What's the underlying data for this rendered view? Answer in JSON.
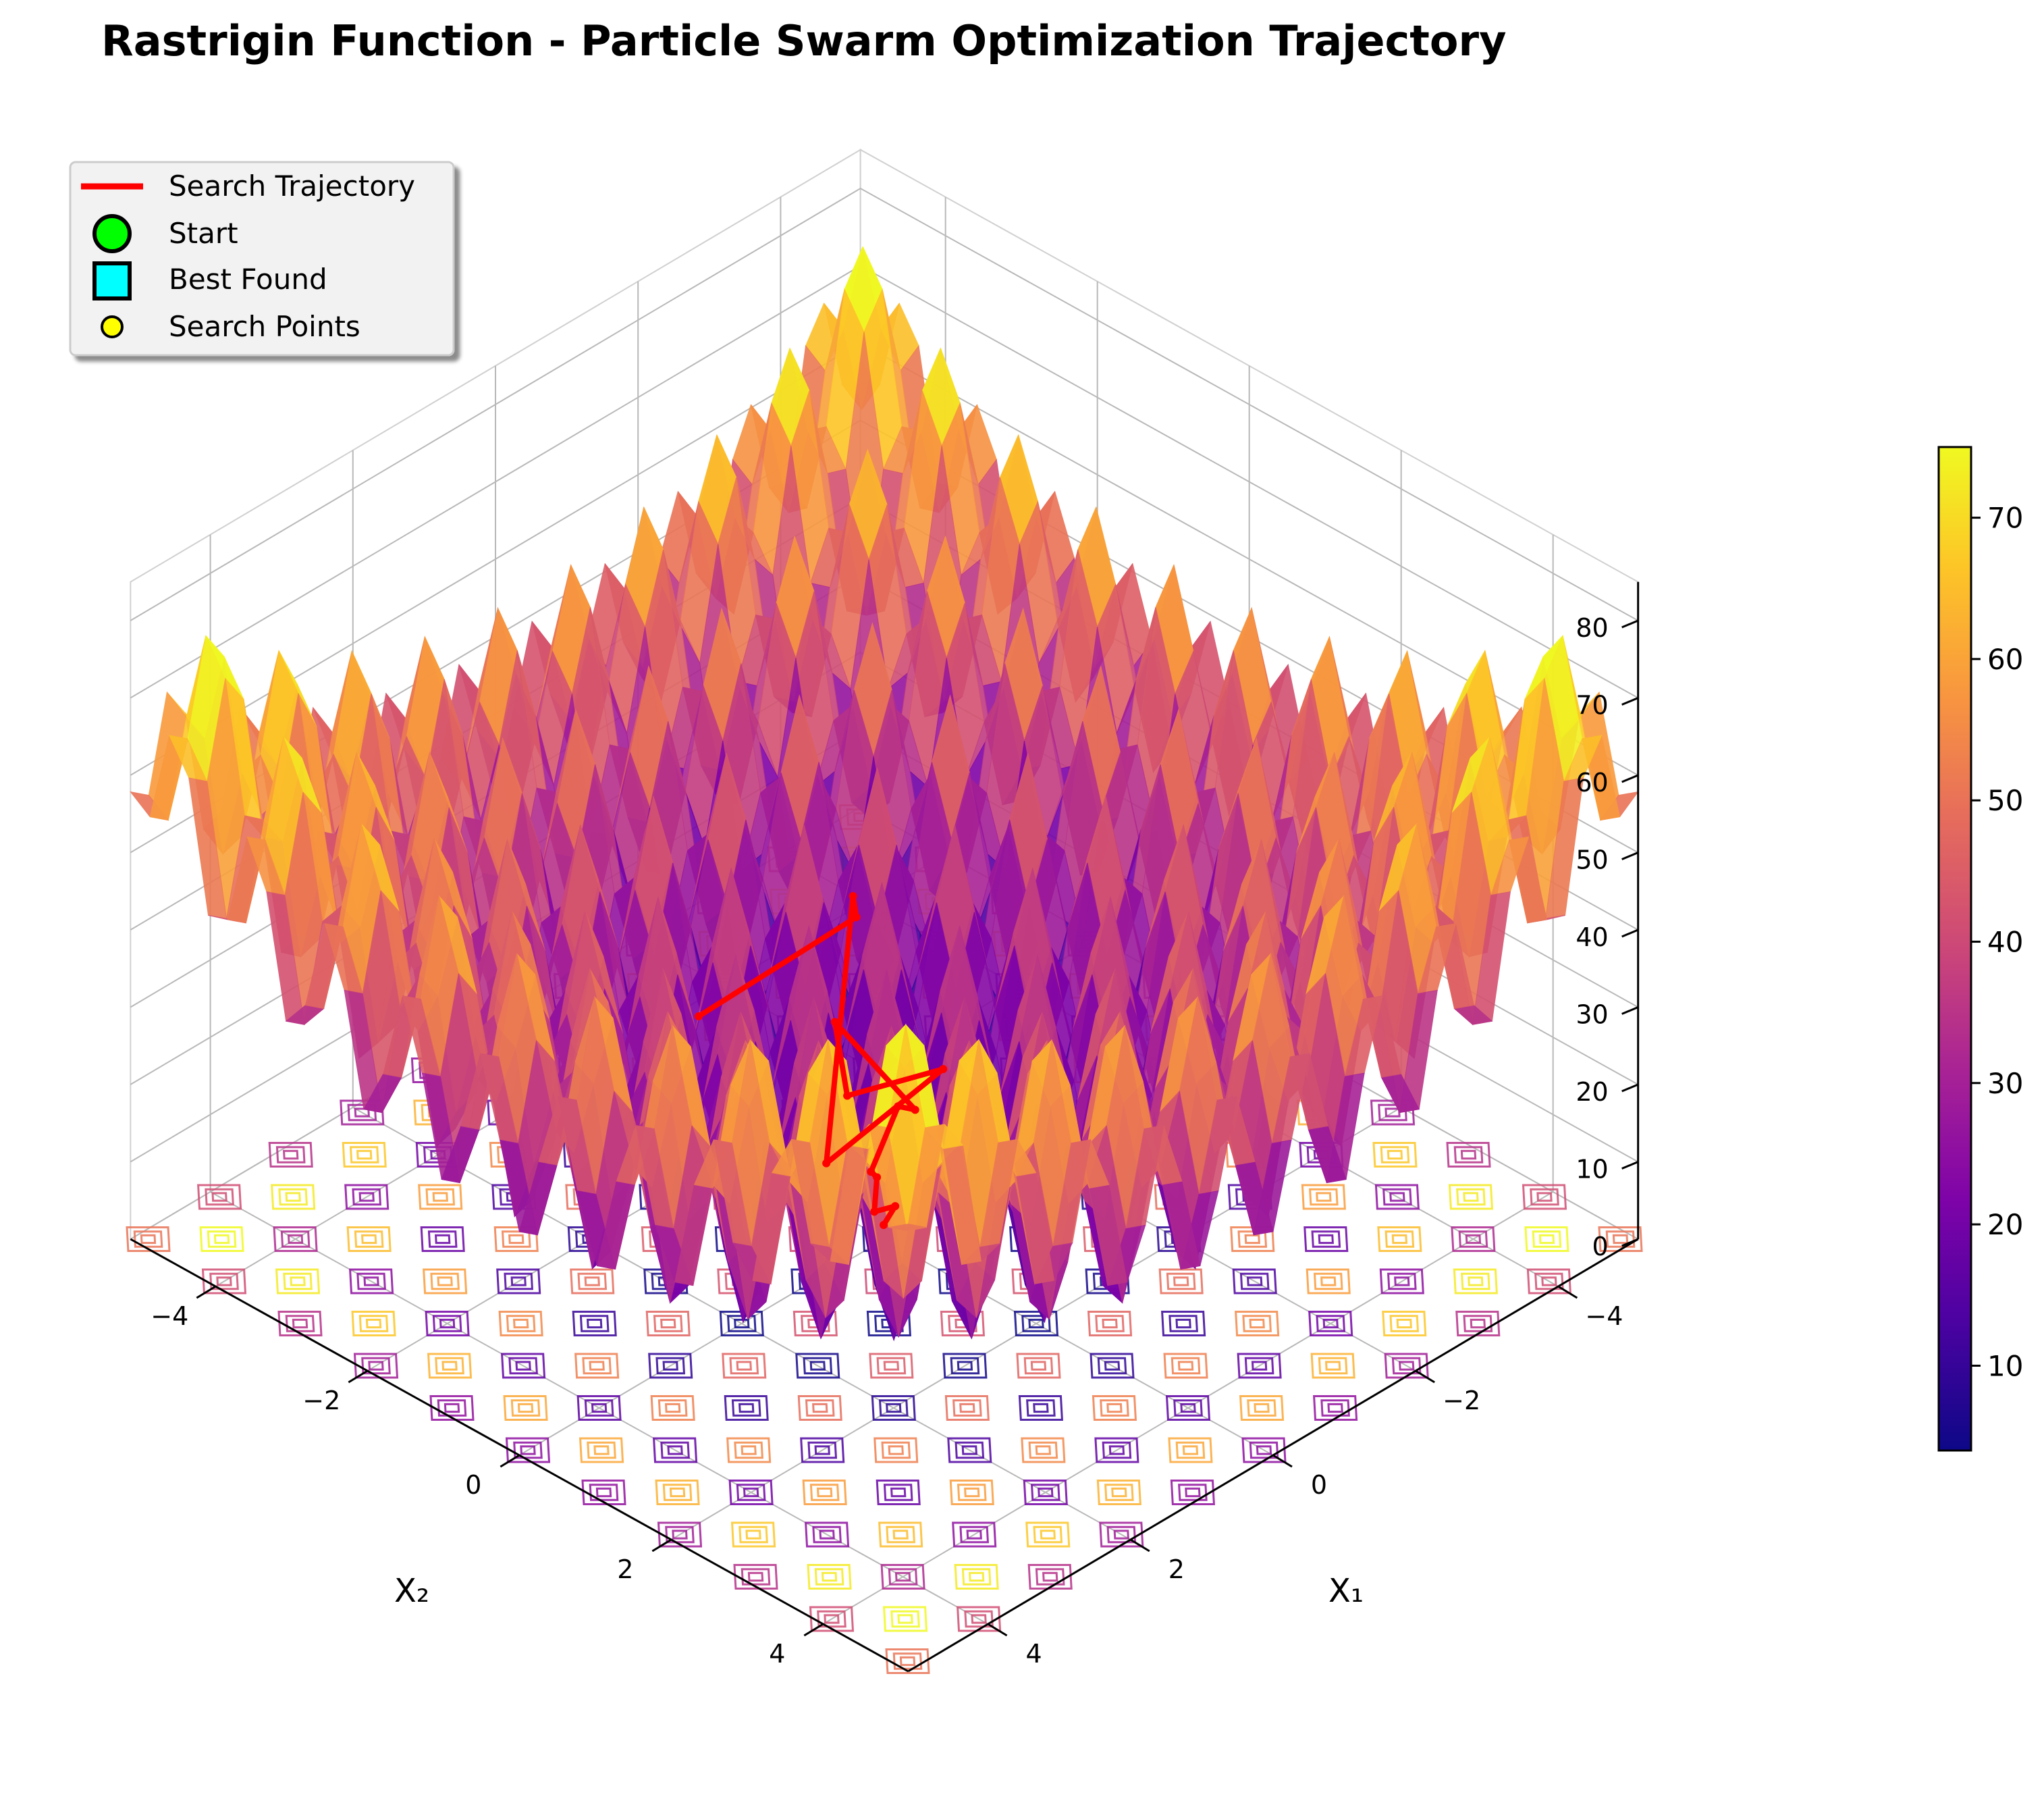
{
  "chart_data": {
    "type": "surface3d",
    "title": "Rastrigin Function - Particle Swarm Optimization Trajectory",
    "function": "Rastrigin",
    "xlabel": "X₁",
    "ylabel": "X₂",
    "zlabel": "",
    "x_ticks": [
      "−4",
      "−2",
      "0",
      "2",
      "4"
    ],
    "y_ticks": [
      "−4",
      "−2",
      "0",
      "2",
      "4"
    ],
    "z_ticks": [
      "0",
      "10",
      "20",
      "30",
      "40",
      "50",
      "60",
      "70",
      "80"
    ],
    "xlim": [
      -5.12,
      5.12
    ],
    "ylim": [
      -5.12,
      5.12
    ],
    "zlim": [
      0,
      85
    ],
    "grid": true,
    "colormap": "plasma",
    "colorbar": {
      "range": [
        4,
        75
      ],
      "ticks": [
        "10",
        "20",
        "30",
        "40",
        "50",
        "60",
        "70"
      ]
    },
    "legend": {
      "placement": "top-left",
      "entries": [
        {
          "label": "Search Trajectory",
          "marker": "line",
          "color": "#ff0000"
        },
        {
          "label": "Start",
          "marker": "circle",
          "color": "#00ff00"
        },
        {
          "label": "Best Found",
          "marker": "square",
          "color": "#00ffff"
        },
        {
          "label": "Search Points",
          "marker": "small-circle",
          "color": "#ffff00"
        }
      ]
    },
    "trajectory": {
      "x": [
        0.9,
        -1.1,
        -0.2,
        0.6,
        -0.4,
        0.2,
        0.8,
        0.1,
        -0.3,
        0.4,
        0.05,
        0.3,
        -0.1,
        0.02
      ],
      "y": [
        -1.6,
        -1.4,
        -0.6,
        -0.2,
        0.4,
        -0.3,
        0.1,
        0.5,
        -0.1,
        0.2,
        -0.05,
        0.15,
        0.05,
        0.01
      ],
      "z": [
        25,
        28,
        40,
        12,
        22,
        18,
        33,
        20,
        15,
        12,
        8,
        6,
        4,
        2
      ]
    }
  },
  "colors": {
    "trajectory": "#ff0000",
    "start_marker": "#00ff00",
    "best_marker": "#00ffff",
    "search_point_marker": "#ffff00"
  }
}
